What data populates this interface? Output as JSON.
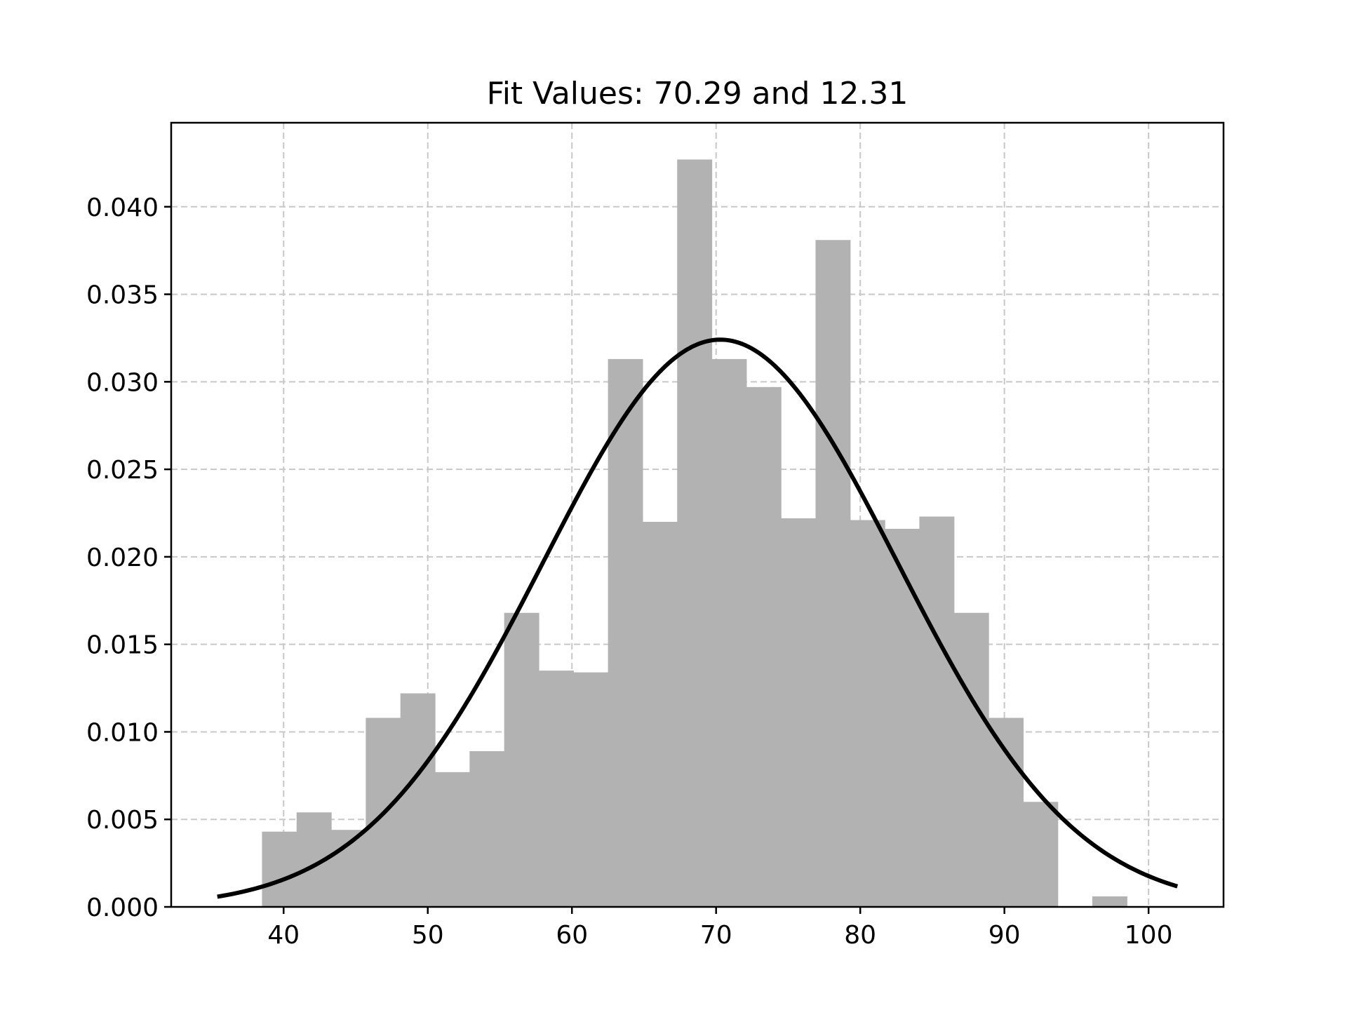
{
  "chart_data": {
    "type": "bar",
    "title": "Fit Values: 70.29 and 12.31",
    "xlabel": "",
    "ylabel": "",
    "xlim": [
      32.2,
      105.2
    ],
    "ylim": [
      0,
      0.0448
    ],
    "grid": true,
    "xticks": [
      {
        "value": 40,
        "label": "40"
      },
      {
        "value": 50,
        "label": "50"
      },
      {
        "value": 60,
        "label": "60"
      },
      {
        "value": 70,
        "label": "70"
      },
      {
        "value": 80,
        "label": "80"
      },
      {
        "value": 90,
        "label": "90"
      },
      {
        "value": 100,
        "label": "100"
      }
    ],
    "yticks": [
      {
        "value": 0.0,
        "label": "0.000"
      },
      {
        "value": 0.005,
        "label": "0.005"
      },
      {
        "value": 0.01,
        "label": "0.010"
      },
      {
        "value": 0.015,
        "label": "0.015"
      },
      {
        "value": 0.02,
        "label": "0.020"
      },
      {
        "value": 0.025,
        "label": "0.025"
      },
      {
        "value": 0.03,
        "label": "0.030"
      },
      {
        "value": 0.035,
        "label": "0.035"
      },
      {
        "value": 0.04,
        "label": "0.040"
      }
    ],
    "histogram": {
      "bin_edges": [
        38.5,
        40.9,
        43.3,
        45.7,
        48.1,
        50.5,
        52.9,
        55.3,
        57.7,
        60.1,
        62.5,
        64.9,
        67.3,
        69.7,
        72.1,
        74.5,
        76.9,
        79.3,
        81.7,
        84.1,
        86.5,
        88.9,
        91.3,
        93.7,
        96.1,
        98.5
      ],
      "densities": [
        0.0043,
        0.0054,
        0.0044,
        0.0108,
        0.0122,
        0.0077,
        0.0089,
        0.0168,
        0.0135,
        0.0134,
        0.0313,
        0.022,
        0.0427,
        0.0313,
        0.0297,
        0.0222,
        0.0381,
        0.0221,
        0.0216,
        0.0223,
        0.0168,
        0.0108,
        0.006,
        0.0,
        0.0006
      ],
      "color": "#b2b2b2"
    },
    "fit": {
      "type": "normal",
      "mean": 70.29,
      "std": 12.31,
      "x_range": [
        35.4,
        102.0
      ],
      "color": "#000000"
    }
  }
}
